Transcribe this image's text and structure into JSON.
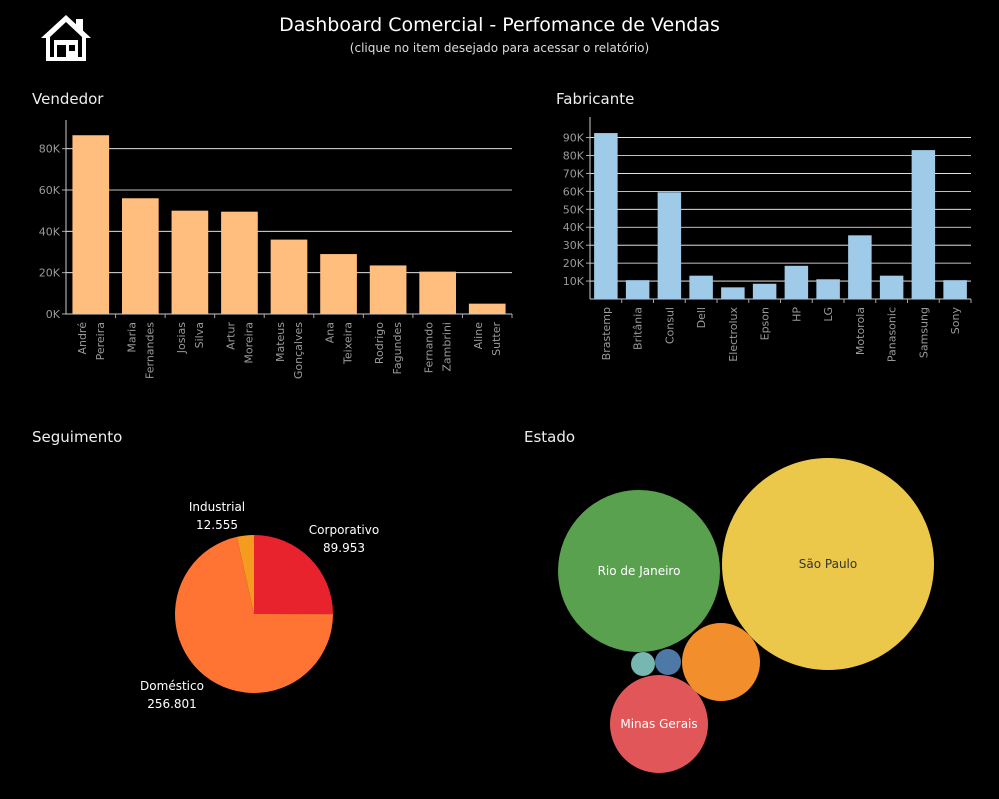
{
  "header": {
    "title": "Dashboard Comercial - Perfomance de Vendas",
    "subtitle": "(clique no item desejado para acessar o relatório)",
    "home_icon": "home-icon"
  },
  "panels": {
    "vendedor": "Vendedor",
    "fabricante": "Fabricante",
    "seguimento": "Seguimento",
    "estado": "Estado"
  },
  "chart_data": [
    {
      "id": "vendedor",
      "type": "bar",
      "title": "Vendedor",
      "categories": [
        "André Pereira",
        "Maria Fernandes",
        "Josias Silva",
        "Artur Moreira",
        "Mateus Gonçalves",
        "Ana Teixeira",
        "Rodrigo Fagundes",
        "Fernando Zambrini",
        "Aline Sutter"
      ],
      "values": [
        86500,
        56000,
        50000,
        49500,
        36000,
        29000,
        23500,
        20500,
        5000
      ],
      "ylim": [
        0,
        90000
      ],
      "yticks": [
        0,
        20000,
        40000,
        60000,
        80000
      ],
      "ytick_labels": [
        "0K",
        "20K",
        "40K",
        "60K",
        "80K"
      ],
      "color": "#FFBE7D",
      "grid": true
    },
    {
      "id": "fabricante",
      "type": "bar",
      "title": "Fabricante",
      "categories": [
        "Brastemp",
        "Britânia",
        "Consul",
        "Dell",
        "Electrolux",
        "Epson",
        "HP",
        "LG",
        "Motorola",
        "Panasonic",
        "Samsung",
        "Sony"
      ],
      "values": [
        92500,
        10500,
        59500,
        13000,
        6500,
        8500,
        18500,
        11000,
        35500,
        13000,
        83000,
        10500
      ],
      "ylim": [
        0,
        97000
      ],
      "yticks": [
        10000,
        20000,
        30000,
        40000,
        50000,
        60000,
        70000,
        80000,
        90000
      ],
      "ytick_labels": [
        "10K",
        "20K",
        "30K",
        "40K",
        "50K",
        "60K",
        "70K",
        "80K",
        "90K"
      ],
      "color": "#A0CBE8",
      "grid": true
    },
    {
      "id": "seguimento",
      "type": "pie",
      "title": "Seguimento",
      "slices": [
        {
          "label": "Corporativo",
          "value": 89953,
          "value_label": "89.953",
          "color": "#E8232D"
        },
        {
          "label": "Doméstico",
          "value": 256801,
          "value_label": "256.801",
          "color": "#FF7432"
        },
        {
          "label": "Industrial",
          "value": 12555,
          "value_label": "12.555",
          "color": "#F59B1F"
        }
      ]
    },
    {
      "id": "estado",
      "type": "bubble",
      "title": "Estado",
      "bubbles": [
        {
          "label": "São Paulo",
          "color": "#EBC84A"
        },
        {
          "label": "Rio de Janeiro",
          "color": "#59A14F"
        },
        {
          "label": "Minas Gerais",
          "color": "#E15759"
        },
        {
          "label": "",
          "color": "#F28E2B"
        },
        {
          "label": "",
          "color": "#4E79A7"
        },
        {
          "label": "",
          "color": "#76B7B2"
        }
      ]
    }
  ]
}
